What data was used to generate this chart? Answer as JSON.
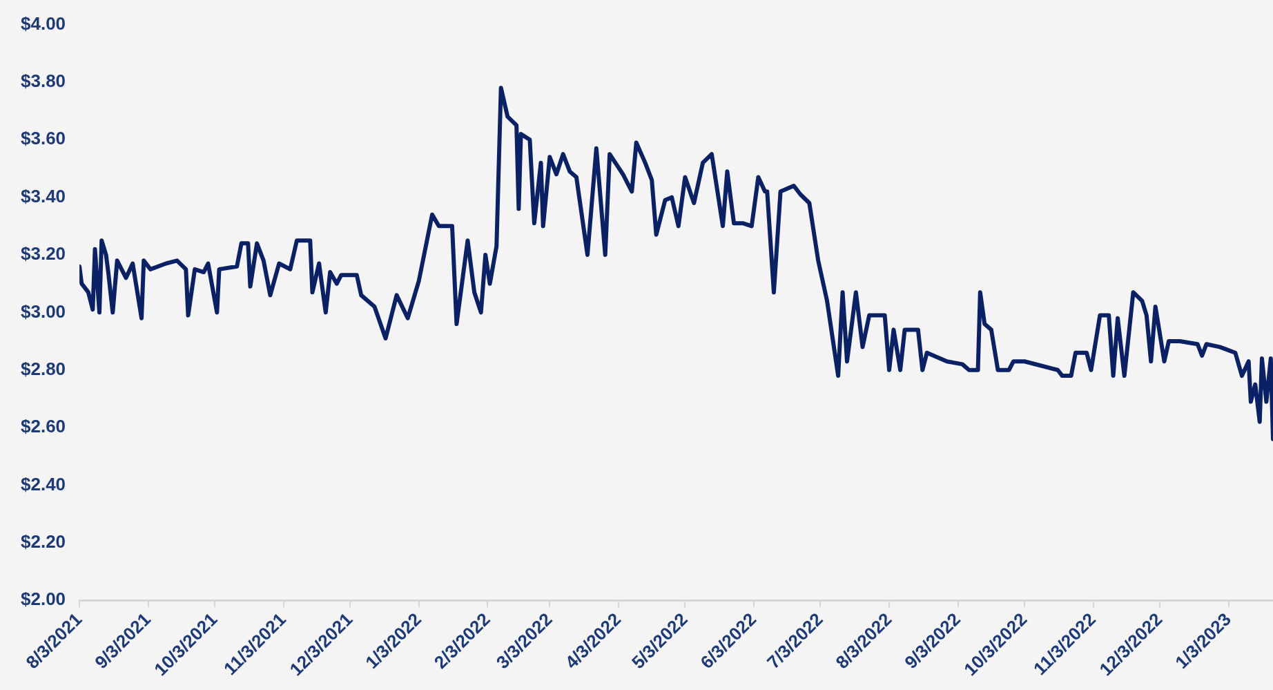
{
  "chart_data": {
    "type": "line",
    "x": [
      "2021-08-03",
      "2021-08-04",
      "2021-08-07",
      "2021-08-09",
      "2021-08-10",
      "2021-08-12",
      "2021-08-13",
      "2021-08-15",
      "2021-08-16",
      "2021-08-18",
      "2021-08-20",
      "2021-08-22",
      "2021-08-24",
      "2021-08-27",
      "2021-08-31",
      "2021-09-01",
      "2021-09-04",
      "2021-09-11",
      "2021-09-16",
      "2021-09-20",
      "2021-09-21",
      "2021-09-24",
      "2021-09-28",
      "2021-09-30",
      "2021-10-04",
      "2021-10-05",
      "2021-10-13",
      "2021-10-15",
      "2021-10-18",
      "2021-10-19",
      "2021-10-22",
      "2021-10-25",
      "2021-10-28",
      "2021-11-01",
      "2021-11-06",
      "2021-11-09",
      "2021-11-15",
      "2021-11-16",
      "2021-11-19",
      "2021-11-22",
      "2021-11-24",
      "2021-11-27",
      "2021-11-29",
      "2021-12-06",
      "2021-12-08",
      "2021-12-14",
      "2021-12-19",
      "2021-12-24",
      "2021-12-29",
      "2022-01-03",
      "2022-01-09",
      "2022-01-12",
      "2022-01-18",
      "2022-01-20",
      "2022-01-25",
      "2022-01-28",
      "2022-01-31",
      "2022-02-02",
      "2022-02-04",
      "2022-02-07",
      "2022-02-09",
      "2022-02-12",
      "2022-02-16",
      "2022-02-17",
      "2022-02-18",
      "2022-02-22",
      "2022-02-24",
      "2022-02-27",
      "2022-02-28",
      "2022-03-03",
      "2022-03-06",
      "2022-03-09",
      "2022-03-12",
      "2022-03-15",
      "2022-03-20",
      "2022-03-24",
      "2022-03-28",
      "2022-03-30",
      "2022-04-05",
      "2022-04-09",
      "2022-04-11",
      "2022-04-15",
      "2022-04-18",
      "2022-04-20",
      "2022-04-24",
      "2022-04-27",
      "2022-04-30",
      "2022-05-03",
      "2022-05-07",
      "2022-05-11",
      "2022-05-15",
      "2022-05-20",
      "2022-05-22",
      "2022-05-25",
      "2022-05-29",
      "2022-06-02",
      "2022-06-05",
      "2022-06-08",
      "2022-06-09",
      "2022-06-12",
      "2022-06-15",
      "2022-06-21",
      "2022-06-24",
      "2022-06-28",
      "2022-07-02",
      "2022-07-06",
      "2022-07-11",
      "2022-07-13",
      "2022-07-15",
      "2022-07-19",
      "2022-07-22",
      "2022-07-25",
      "2022-08-01",
      "2022-08-03",
      "2022-08-05",
      "2022-08-08",
      "2022-08-10",
      "2022-08-16",
      "2022-08-18",
      "2022-08-20",
      "2022-08-29",
      "2022-09-05",
      "2022-09-08",
      "2022-09-12",
      "2022-09-13",
      "2022-09-15",
      "2022-09-18",
      "2022-09-21",
      "2022-09-26",
      "2022-09-28",
      "2022-10-03",
      "2022-10-18",
      "2022-10-20",
      "2022-10-24",
      "2022-10-26",
      "2022-10-31",
      "2022-11-02",
      "2022-11-06",
      "2022-11-10",
      "2022-11-12",
      "2022-11-14",
      "2022-11-17",
      "2022-11-21",
      "2022-11-25",
      "2022-11-27",
      "2022-11-29",
      "2022-12-01",
      "2022-12-05",
      "2022-12-07",
      "2022-12-12",
      "2022-12-20",
      "2022-12-22",
      "2022-12-24",
      "2022-12-30",
      "2023-01-06",
      "2023-01-09",
      "2023-01-12",
      "2023-01-13",
      "2023-01-15",
      "2023-01-17",
      "2023-01-18",
      "2023-01-20",
      "2023-01-22",
      "2023-01-23"
    ],
    "series": [
      {
        "color": "#0a2265",
        "values": [
          3.16,
          3.1,
          3.07,
          3.01,
          3.22,
          3.0,
          3.25,
          3.2,
          3.14,
          3.0,
          3.18,
          3.15,
          3.12,
          3.17,
          2.98,
          3.18,
          3.15,
          3.17,
          3.18,
          3.15,
          2.99,
          3.15,
          3.14,
          3.17,
          3.0,
          3.15,
          3.16,
          3.24,
          3.24,
          3.09,
          3.24,
          3.18,
          3.06,
          3.17,
          3.15,
          3.25,
          3.25,
          3.07,
          3.17,
          3.0,
          3.14,
          3.1,
          3.13,
          3.13,
          3.06,
          3.02,
          2.91,
          3.06,
          2.98,
          3.11,
          3.34,
          3.3,
          3.3,
          2.96,
          3.25,
          3.07,
          3.0,
          3.2,
          3.1,
          3.23,
          3.78,
          3.68,
          3.65,
          3.36,
          3.62,
          3.6,
          3.31,
          3.52,
          3.3,
          3.54,
          3.48,
          3.55,
          3.49,
          3.47,
          3.2,
          3.57,
          3.2,
          3.55,
          3.48,
          3.42,
          3.59,
          3.52,
          3.46,
          3.27,
          3.39,
          3.4,
          3.3,
          3.47,
          3.38,
          3.52,
          3.55,
          3.3,
          3.49,
          3.31,
          3.31,
          3.3,
          3.47,
          3.42,
          3.42,
          3.07,
          3.42,
          3.44,
          3.41,
          3.38,
          3.18,
          3.04,
          2.78,
          3.07,
          2.83,
          3.07,
          2.88,
          2.99,
          2.99,
          2.8,
          2.94,
          2.8,
          2.94,
          2.94,
          2.8,
          2.86,
          2.83,
          2.82,
          2.8,
          2.8,
          3.07,
          2.96,
          2.94,
          2.8,
          2.8,
          2.83,
          2.83,
          2.8,
          2.78,
          2.78,
          2.86,
          2.86,
          2.8,
          2.99,
          2.99,
          2.78,
          2.98,
          2.78,
          3.07,
          3.04,
          2.99,
          2.83,
          3.02,
          2.83,
          2.9,
          2.9,
          2.89,
          2.85,
          2.89,
          2.88,
          2.86,
          2.78,
          2.83,
          2.69,
          2.75,
          2.62,
          2.84,
          2.69,
          2.84,
          2.56
        ]
      }
    ],
    "xlim": [
      "2021-08-03",
      "2023-01-23"
    ],
    "xticks": [
      {
        "value": "2021-08-03",
        "label": "8/3/2021"
      },
      {
        "value": "2021-09-03",
        "label": "9/3/2021"
      },
      {
        "value": "2021-10-03",
        "label": "10/3/2021"
      },
      {
        "value": "2021-11-03",
        "label": "11/3/2021"
      },
      {
        "value": "2021-12-03",
        "label": "12/3/2021"
      },
      {
        "value": "2022-01-03",
        "label": "1/3/2022"
      },
      {
        "value": "2022-02-03",
        "label": "2/3/2022"
      },
      {
        "value": "2022-03-03",
        "label": "3/3/2022"
      },
      {
        "value": "2022-04-03",
        "label": "4/3/2022"
      },
      {
        "value": "2022-05-03",
        "label": "5/3/2022"
      },
      {
        "value": "2022-06-03",
        "label": "6/3/2022"
      },
      {
        "value": "2022-07-03",
        "label": "7/3/2022"
      },
      {
        "value": "2022-08-03",
        "label": "8/3/2022"
      },
      {
        "value": "2022-09-03",
        "label": "9/3/2022"
      },
      {
        "value": "2022-10-03",
        "label": "10/3/2022"
      },
      {
        "value": "2022-11-03",
        "label": "11/3/2022"
      },
      {
        "value": "2022-12-03",
        "label": "12/3/2022"
      },
      {
        "value": "2023-01-03",
        "label": "1/3/2023"
      }
    ],
    "ylim": [
      2,
      4
    ],
    "yticks": [
      {
        "value": 2,
        "label": "$2.00"
      },
      {
        "value": 2.2,
        "label": "$2.20"
      },
      {
        "value": 2.4,
        "label": "$2.40"
      },
      {
        "value": 2.6,
        "label": "$2.60"
      },
      {
        "value": 2.8,
        "label": "$2.80"
      },
      {
        "value": 3,
        "label": "$3.00"
      },
      {
        "value": 3.2,
        "label": "$3.20"
      },
      {
        "value": 3.4,
        "label": "$3.40"
      },
      {
        "value": 3.6,
        "label": "$3.60"
      },
      {
        "value": 3.8,
        "label": "$3.80"
      },
      {
        "value": 4,
        "label": "$4.00"
      }
    ],
    "grid": false,
    "legend": false,
    "marker": "none",
    "line_style": "solid"
  }
}
